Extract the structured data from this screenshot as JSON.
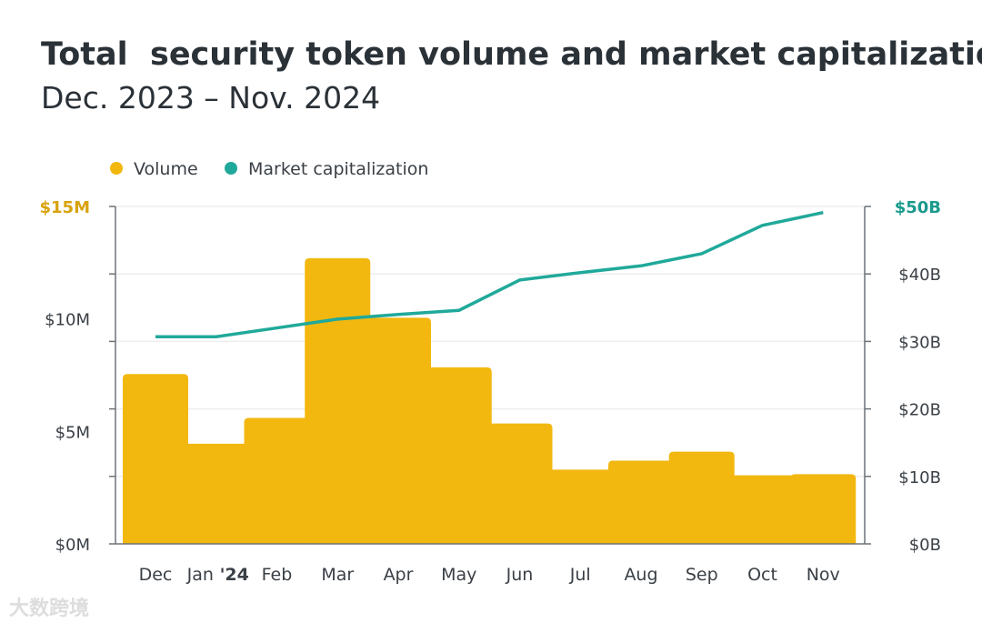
{
  "chart_data": {
    "type": "bar",
    "title": "Total  security token volume and market capitalization",
    "subtitle": "Dec. 2023 – Nov. 2024",
    "categories": [
      "Dec",
      "Jan",
      "Feb",
      "Mar",
      "Apr",
      "May",
      "Jun",
      "Jul",
      "Aug",
      "Sep",
      "Oct",
      "Nov"
    ],
    "category_suffix": {
      "1": "'24"
    },
    "legend": [
      "Volume",
      "Market capitalization"
    ],
    "legend_position": "top-left",
    "series": [
      {
        "name": "Volume",
        "type": "bar",
        "axis": "left",
        "color": "#f2b80f",
        "values": [
          7.55,
          4.45,
          5.6,
          12.7,
          10.05,
          7.85,
          5.35,
          3.3,
          3.7,
          4.1,
          3.05,
          3.1
        ]
      },
      {
        "name": "Market capitalization",
        "type": "line",
        "axis": "right",
        "color": "#20a99a",
        "values": [
          30.7,
          30.7,
          32.0,
          33.3,
          34.0,
          34.6,
          39.1,
          40.2,
          41.2,
          43.0,
          47.2,
          49.1
        ]
      }
    ],
    "left_axis": {
      "ylim": [
        0,
        15
      ],
      "tick_labels": [
        "$0M",
        "$5M",
        "$10M",
        "$15M"
      ],
      "tick_values": [
        0,
        5,
        10,
        15
      ],
      "highlight_color": "#d8a20c"
    },
    "right_axis": {
      "ylim": [
        0,
        50
      ],
      "tick_labels": [
        "$0B",
        "$10B",
        "$20B",
        "$30B",
        "$40B",
        "$50B"
      ],
      "tick_values": [
        0,
        10,
        20,
        30,
        40,
        50
      ],
      "highlight_color": "#1a9a8c"
    },
    "grid": true
  },
  "watermark": "大数跨境"
}
